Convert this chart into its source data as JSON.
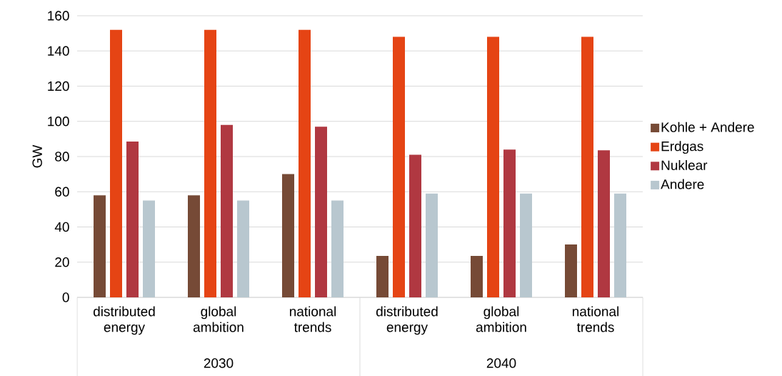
{
  "chart_data": {
    "type": "bar",
    "ylabel": "GW",
    "categories": [
      "distributed energy",
      "global ambition",
      "national trends",
      "distributed energy",
      "global ambition",
      "national trends"
    ],
    "annotations": [
      "2030",
      "2040"
    ],
    "series": [
      {
        "name": "Kohle + Andere",
        "color": "#764a36",
        "values": [
          58,
          58,
          70,
          23.5,
          23.5,
          30
        ]
      },
      {
        "name": "Erdgas",
        "color": "#e54414",
        "values": [
          152,
          152,
          152,
          148,
          148,
          148
        ]
      },
      {
        "name": "Nuklear",
        "color": "#b03841",
        "values": [
          88.5,
          98,
          97,
          81,
          84,
          83.5
        ]
      },
      {
        "name": "Andere",
        "color": "#b8c7cf",
        "values": [
          55,
          55,
          55,
          59,
          59,
          59
        ]
      }
    ],
    "ylim": [
      0,
      160
    ],
    "yticks": [
      0,
      20,
      40,
      60,
      80,
      100,
      120,
      140,
      160
    ],
    "grid": "y",
    "legend": "right"
  }
}
